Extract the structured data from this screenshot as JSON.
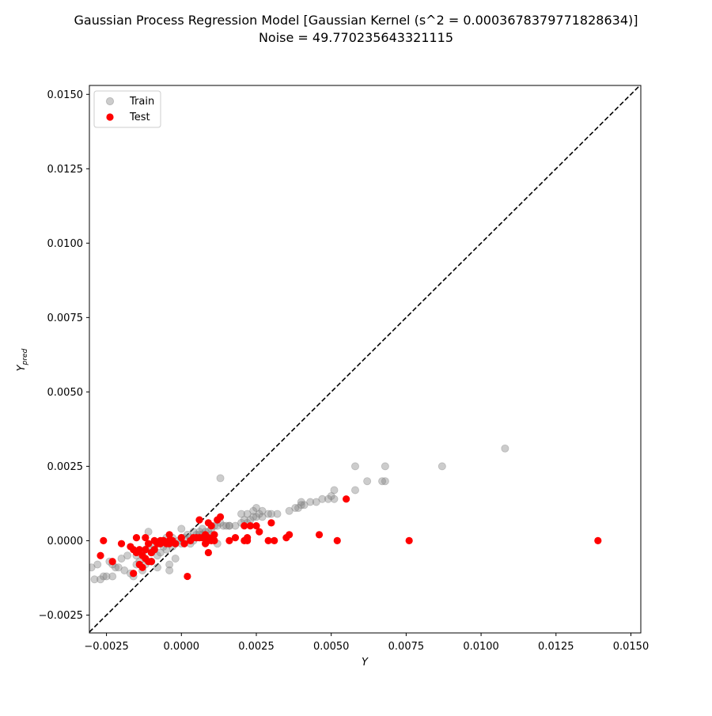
{
  "chart_data": {
    "type": "scatter",
    "title": "Gaussian Process Regression Model [Gaussian Kernel (s^2 = 0.0003678379771828634)]",
    "subtitle": "Noise = 49.770235643321115",
    "xlabel": "Y",
    "ylabel_main": "Y",
    "ylabel_sub": "pred",
    "xlim": [
      -0.00307,
      0.01533
    ],
    "ylim": [
      -0.0031,
      0.0153
    ],
    "x_ticks": [
      -0.0025,
      0.0,
      0.0025,
      0.005,
      0.0075,
      0.01,
      0.0125,
      0.015
    ],
    "x_tick_labels": [
      "−0.0025",
      "0.0000",
      "0.0025",
      "0.0050",
      "0.0075",
      "0.0100",
      "0.0125",
      "0.0150"
    ],
    "y_ticks": [
      -0.0025,
      0.0,
      0.0025,
      0.005,
      0.0075,
      0.01,
      0.0125,
      0.015
    ],
    "y_tick_labels": [
      "−0.0025",
      "0.0000",
      "0.0025",
      "0.0050",
      "0.0075",
      "0.0100",
      "0.0125",
      "0.0150"
    ],
    "grid": false,
    "legend_position": "top-left",
    "reference_line": {
      "style": "dashed",
      "color": "#000000",
      "from": [
        -0.00307,
        -0.00307
      ],
      "to": [
        0.01533,
        0.01533
      ]
    },
    "series": [
      {
        "name": "Train",
        "color": "#808080",
        "opacity": 0.4,
        "points": [
          [
            -0.003,
            -0.0009
          ],
          [
            -0.0029,
            -0.0013
          ],
          [
            -0.0028,
            -0.0008
          ],
          [
            -0.0027,
            -0.0013
          ],
          [
            -0.0026,
            -0.0012
          ],
          [
            -0.0025,
            -0.0012
          ],
          [
            -0.0024,
            -0.0007
          ],
          [
            -0.0023,
            -0.0008
          ],
          [
            -0.0023,
            -0.0012
          ],
          [
            -0.0022,
            -0.0009
          ],
          [
            -0.0021,
            -0.0009
          ],
          [
            -0.002,
            -0.0006
          ],
          [
            -0.0019,
            -0.001
          ],
          [
            -0.0018,
            -0.0005
          ],
          [
            -0.0017,
            -0.0011
          ],
          [
            -0.0016,
            -0.0012
          ],
          [
            -0.0015,
            -0.0005
          ],
          [
            -0.0015,
            -0.0008
          ],
          [
            -0.0014,
            -0.0007
          ],
          [
            -0.0013,
            -0.0004
          ],
          [
            -0.0013,
            -0.001
          ],
          [
            -0.0012,
            -0.0003
          ],
          [
            -0.0012,
            -0.0008
          ],
          [
            -0.0011,
            -0.0002
          ],
          [
            -0.0011,
            0.0003
          ],
          [
            -0.001,
            -0.0004
          ],
          [
            -0.001,
            -0.0007
          ],
          [
            -0.0009,
            -0.0003
          ],
          [
            -0.0009,
            -0.0002
          ],
          [
            -0.0008,
            -0.0009
          ],
          [
            -0.0008,
            -0.0005
          ],
          [
            -0.0007,
            -0.0001
          ],
          [
            -0.0007,
            -0.0004
          ],
          [
            -0.0006,
            0.0
          ],
          [
            -0.0006,
            -0.0002
          ],
          [
            -0.0005,
            -0.0003
          ],
          [
            -0.0005,
            0.0001
          ],
          [
            -0.0004,
            -0.0001
          ],
          [
            -0.0004,
            -0.0008
          ],
          [
            -0.0004,
            -0.001
          ],
          [
            -0.0003,
            -0.0002
          ],
          [
            -0.0003,
            0.0001
          ],
          [
            -0.0002,
            -0.0006
          ],
          [
            -0.0002,
            -0.0001
          ],
          [
            -0.0001,
            0.0
          ],
          [
            0.0,
            0.0001
          ],
          [
            0.0,
            -0.0001
          ],
          [
            0.0,
            0.0004
          ],
          [
            0.0001,
            0.0001
          ],
          [
            0.0002,
            0.0002
          ],
          [
            0.0003,
            -0.0001
          ],
          [
            0.0003,
            0.0001
          ],
          [
            0.0004,
            0.0
          ],
          [
            0.0004,
            0.0003
          ],
          [
            0.0005,
            0.0001
          ],
          [
            0.0005,
            0.0002
          ],
          [
            0.0006,
            0.0002
          ],
          [
            0.0006,
            0.0003
          ],
          [
            0.0007,
            0.0002
          ],
          [
            0.0007,
            0.0004
          ],
          [
            0.0008,
            0.0001
          ],
          [
            0.0008,
            0.0003
          ],
          [
            0.0009,
            0.0003
          ],
          [
            0.001,
            0.0004
          ],
          [
            0.001,
            0.0002
          ],
          [
            0.0011,
            0.0005
          ],
          [
            0.0012,
            0.0005
          ],
          [
            0.0012,
            -0.0001
          ],
          [
            0.0013,
            0.0006
          ],
          [
            0.0013,
            0.0021
          ],
          [
            0.0014,
            0.0005
          ],
          [
            0.0015,
            0.0005
          ],
          [
            0.0016,
            0.0005
          ],
          [
            0.0016,
            0.0005
          ],
          [
            0.0018,
            0.0005
          ],
          [
            0.002,
            0.0009
          ],
          [
            0.002,
            0.0006
          ],
          [
            0.0021,
            0.0007
          ],
          [
            0.0022,
            0.0009
          ],
          [
            0.0022,
            0.0006
          ],
          [
            0.0023,
            0.0007
          ],
          [
            0.0024,
            0.001
          ],
          [
            0.0024,
            0.0008
          ],
          [
            0.0025,
            0.0011
          ],
          [
            0.0025,
            0.0008
          ],
          [
            0.0026,
            0.0009
          ],
          [
            0.0027,
            0.0008
          ],
          [
            0.0027,
            0.001
          ],
          [
            0.0029,
            0.0009
          ],
          [
            0.003,
            0.0009
          ],
          [
            0.0032,
            0.0009
          ],
          [
            0.0036,
            0.001
          ],
          [
            0.0038,
            0.0011
          ],
          [
            0.0039,
            0.0011
          ],
          [
            0.004,
            0.0012
          ],
          [
            0.004,
            0.0013
          ],
          [
            0.0041,
            0.0012
          ],
          [
            0.0043,
            0.0013
          ],
          [
            0.0045,
            0.0013
          ],
          [
            0.0047,
            0.0014
          ],
          [
            0.0049,
            0.0014
          ],
          [
            0.005,
            0.0015
          ],
          [
            0.0051,
            0.0014
          ],
          [
            0.0051,
            0.0017
          ],
          [
            0.0058,
            0.0017
          ],
          [
            0.0058,
            0.0025
          ],
          [
            0.0062,
            0.002
          ],
          [
            0.0067,
            0.002
          ],
          [
            0.0068,
            0.002
          ],
          [
            0.0068,
            0.0025
          ],
          [
            0.0087,
            0.0025
          ],
          [
            0.0108,
            0.0031
          ]
        ]
      },
      {
        "name": "Test",
        "color": "#ff0000",
        "opacity": 1,
        "points": [
          [
            -0.0027,
            -0.0005
          ],
          [
            -0.0026,
            0.0
          ],
          [
            -0.0023,
            -0.0007
          ],
          [
            -0.002,
            -0.0001
          ],
          [
            -0.0017,
            -0.0002
          ],
          [
            -0.0016,
            -0.0011
          ],
          [
            -0.0016,
            -0.0003
          ],
          [
            -0.0015,
            -0.0004
          ],
          [
            -0.0015,
            0.0001
          ],
          [
            -0.0014,
            -0.0003
          ],
          [
            -0.0014,
            -0.0008
          ],
          [
            -0.0013,
            -0.0005
          ],
          [
            -0.0013,
            -0.0009
          ],
          [
            -0.0012,
            0.0001
          ],
          [
            -0.0012,
            -0.0006
          ],
          [
            -0.0012,
            -0.0003
          ],
          [
            -0.0011,
            -0.0001
          ],
          [
            -0.0011,
            -0.0007
          ],
          [
            -0.001,
            -0.0004
          ],
          [
            -0.001,
            -0.0007
          ],
          [
            -0.0009,
            -0.0003
          ],
          [
            -0.0009,
            0.0
          ],
          [
            -0.0008,
            -0.0001
          ],
          [
            -0.0007,
            0.0
          ],
          [
            -0.0007,
            -0.0001
          ],
          [
            -0.0006,
            0.0
          ],
          [
            -0.0005,
            -0.0001
          ],
          [
            -0.0004,
            -0.0001
          ],
          [
            -0.0004,
            0.0
          ],
          [
            -0.0004,
            0.0002
          ],
          [
            -0.0003,
            0.0
          ],
          [
            -0.0002,
            -0.0001
          ],
          [
            0.0,
            0.0001
          ],
          [
            0.0001,
            -0.0001
          ],
          [
            0.0001,
            -0.0001
          ],
          [
            0.0002,
            -0.0012
          ],
          [
            0.0003,
            0.0
          ],
          [
            0.0004,
            0.0001
          ],
          [
            0.0005,
            0.0001
          ],
          [
            0.0006,
            0.0001
          ],
          [
            0.0006,
            0.0007
          ],
          [
            0.0007,
            0.0001
          ],
          [
            0.0008,
            0.0002
          ],
          [
            0.0008,
            -0.0001
          ],
          [
            0.0009,
            0.0
          ],
          [
            0.0009,
            0.0001
          ],
          [
            0.0009,
            0.0006
          ],
          [
            0.0009,
            -0.0004
          ],
          [
            0.001,
            0.0
          ],
          [
            0.001,
            0.0005
          ],
          [
            0.0011,
            0.0002
          ],
          [
            0.0011,
            0.0
          ],
          [
            0.0012,
            0.0007
          ],
          [
            0.0013,
            0.0008
          ],
          [
            0.0016,
            0.0
          ],
          [
            0.0018,
            0.0001
          ],
          [
            0.0021,
            0.0
          ],
          [
            0.0021,
            0.0005
          ],
          [
            0.0022,
            0.0
          ],
          [
            0.0022,
            0.0001
          ],
          [
            0.0023,
            0.0005
          ],
          [
            0.0025,
            0.0005
          ],
          [
            0.0026,
            0.0003
          ],
          [
            0.0029,
            0.0
          ],
          [
            0.003,
            0.0006
          ],
          [
            0.0031,
            0.0
          ],
          [
            0.0035,
            0.0001
          ],
          [
            0.0036,
            0.0002
          ],
          [
            0.0046,
            0.0002
          ],
          [
            0.0052,
            0.0
          ],
          [
            0.0055,
            0.0014
          ],
          [
            0.0076,
            0.0
          ],
          [
            0.0139,
            0.0
          ]
        ]
      }
    ]
  }
}
